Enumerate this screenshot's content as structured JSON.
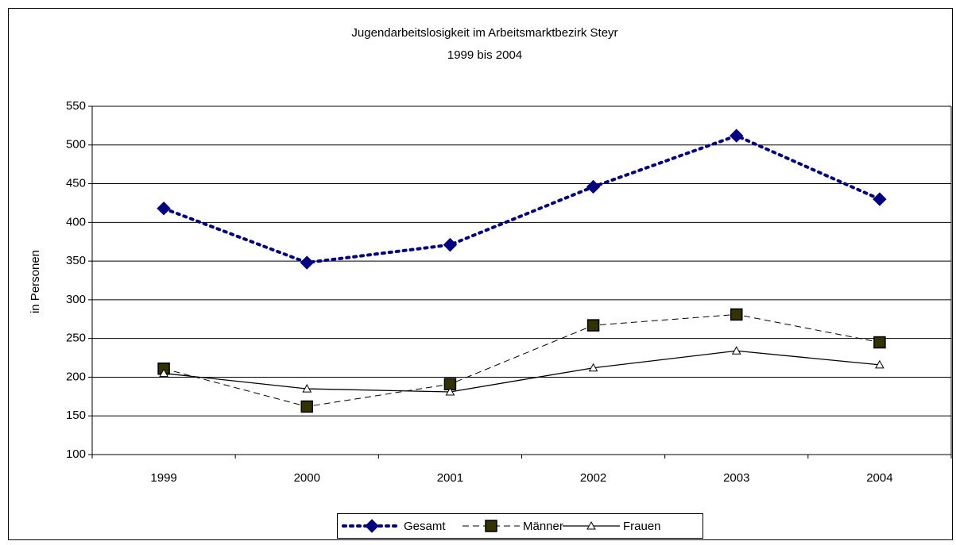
{
  "chart_data": {
    "type": "line",
    "title": "Jugendarbeitslosigkeit im Arbeitsmarktbezirk Steyr",
    "subtitle": "1999 bis 2004",
    "y_label": "in Personen",
    "categories": [
      "1999",
      "2000",
      "2001",
      "2002",
      "2003",
      "2004"
    ],
    "series": [
      {
        "name": "Gesamt",
        "color": "#000080",
        "values": [
          418,
          348,
          371,
          446,
          512,
          430
        ]
      },
      {
        "name": "Männer",
        "color": "#000000",
        "values": [
          211,
          162,
          191,
          267,
          281,
          245
        ]
      },
      {
        "name": "Frauen",
        "color": "#000000",
        "values": [
          205,
          185,
          181,
          212,
          234,
          216
        ]
      }
    ],
    "ylim": [
      100,
      550
    ],
    "yticks": [
      100,
      150,
      200,
      250,
      300,
      350,
      400,
      450,
      500,
      550
    ],
    "grid": true,
    "legend": "bottom"
  }
}
